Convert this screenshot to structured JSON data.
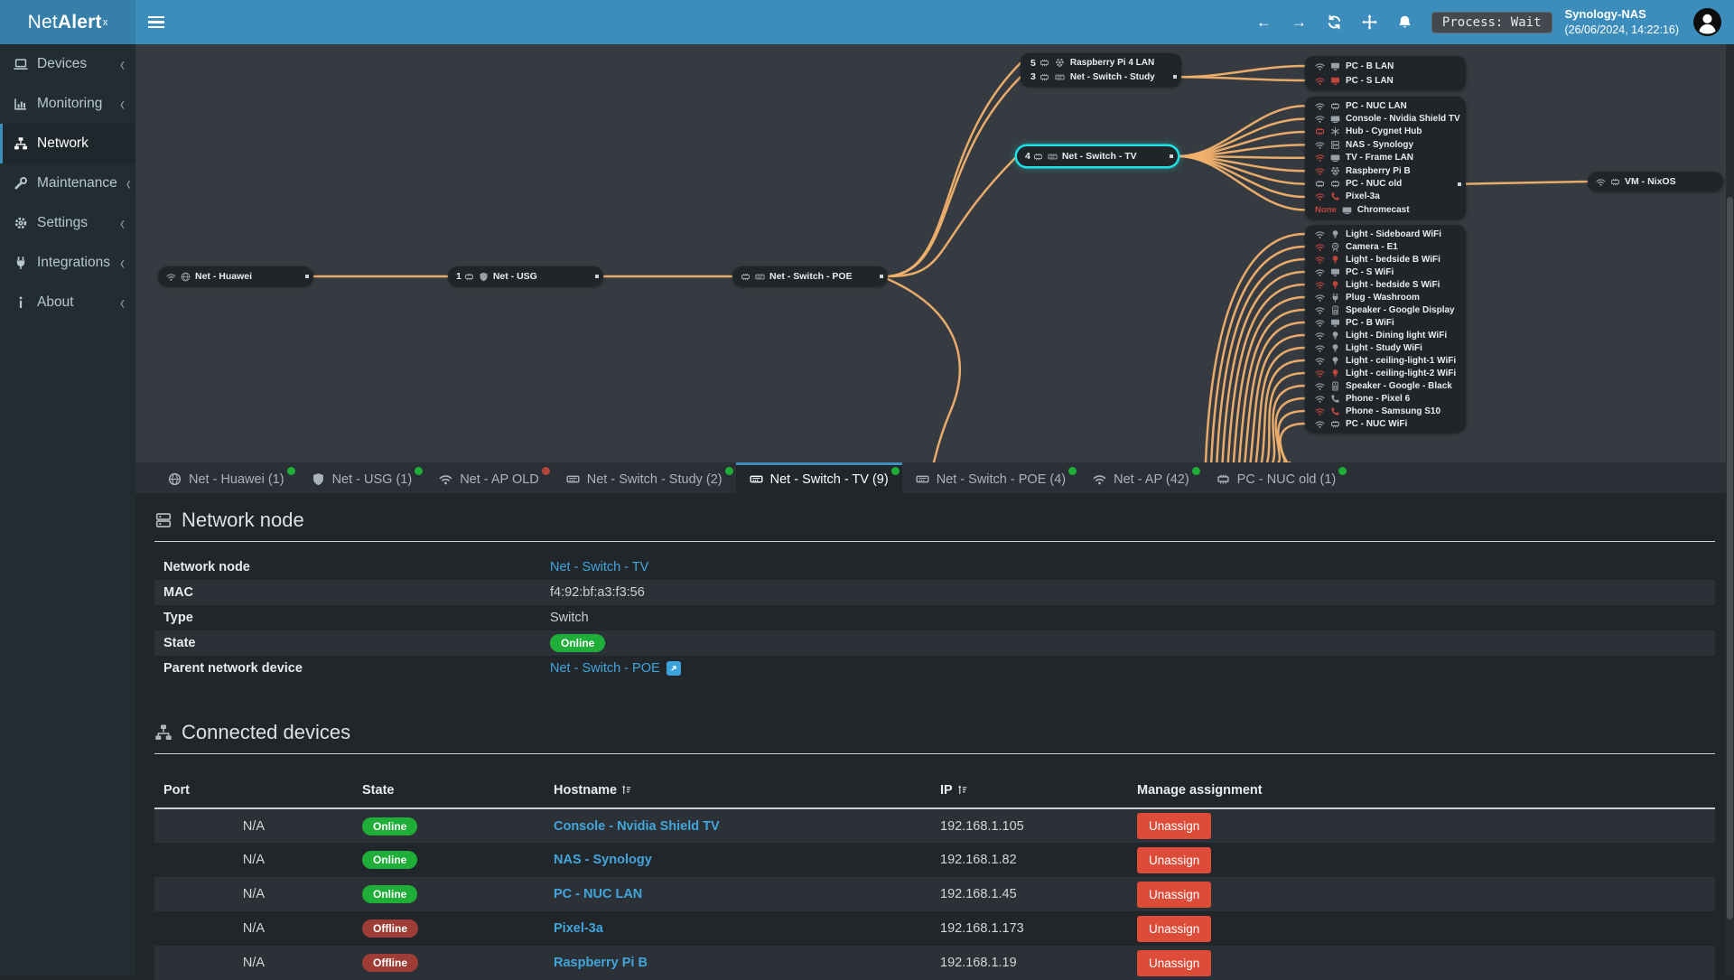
{
  "header": {
    "logo_net": "Net",
    "logo_alert": "Alert",
    "logo_sup": "x",
    "process_badge": "Process: Wait",
    "host_name": "Synology-NAS",
    "host_time": "(26/06/2024, 14:22:16)",
    "nav": {
      "back": "←",
      "forward": "→"
    }
  },
  "colors": {
    "accent": "#3c8dbc",
    "topology_link": "#f2b16d",
    "selected_outline": "#1ee3e6",
    "online": "#1fae38",
    "offline": "#9e3d35",
    "danger": "#dd4b39",
    "link_blue": "#42a5dc"
  },
  "sidebar": {
    "items": [
      {
        "icon": "laptop",
        "label": "Devices",
        "chevron": true
      },
      {
        "icon": "chart",
        "label": "Monitoring",
        "chevron": true
      },
      {
        "icon": "sitemap",
        "label": "Network",
        "active": true
      },
      {
        "icon": "wrench",
        "label": "Maintenance",
        "chevron": true
      },
      {
        "icon": "gear",
        "label": "Settings",
        "chevron": true
      },
      {
        "icon": "plug",
        "label": "Integrations",
        "chevron": true
      },
      {
        "icon": "info",
        "label": "About",
        "chevron": true
      }
    ]
  },
  "topology": {
    "nodes": [
      {
        "id": "huawei",
        "icons": [
          "wifi",
          "globe"
        ],
        "label": "Net - Huawei",
        "port": true
      },
      {
        "id": "usg",
        "count": 1,
        "icons": [
          "shield"
        ],
        "label": "Net - USG",
        "port": true
      },
      {
        "id": "poe",
        "icons": [
          "eth",
          "switch"
        ],
        "label": "Net - Switch - POE",
        "port": true
      },
      {
        "id": "tv",
        "count": 4,
        "icons": [
          "switch"
        ],
        "label": "Net - Switch - TV",
        "port": true,
        "selected": true
      },
      {
        "id": "vm",
        "icons": [
          "wifi",
          "eth"
        ],
        "label": "VM - NixOS"
      }
    ],
    "groups": {
      "study": [
        {
          "count": 5,
          "dev": "raspberry",
          "label": "Raspberry Pi 4 LAN"
        },
        {
          "count": 3,
          "dev": "switch",
          "label": "Net - Switch - Study",
          "port": true
        }
      ],
      "g1": [
        {
          "conn": "wifi",
          "dev": "monitor",
          "label": "PC - B LAN"
        },
        {
          "conn": "wifi",
          "connRed": true,
          "dev": "monitor",
          "devRed": true,
          "label": "PC - S LAN"
        }
      ],
      "g2": [
        {
          "conn": "wifi",
          "dev": "eth",
          "label": "PC - NUC LAN"
        },
        {
          "conn": "wifi",
          "dev": "tv",
          "label": "Console - Nvidia Shield TV"
        },
        {
          "conn": "eth",
          "connRed": true,
          "dev": "hub",
          "label": "Hub - Cygnet Hub"
        },
        {
          "conn": "wifi",
          "dev": "server",
          "label": "NAS - Synology"
        },
        {
          "conn": "wifi",
          "connRed": true,
          "dev": "tv",
          "label": "TV - Frame LAN"
        },
        {
          "conn": "wifi",
          "connRed": true,
          "dev": "raspberry",
          "label": "Raspberry Pi B"
        },
        {
          "conn": "eth",
          "dev": "eth",
          "label": "PC - NUC old",
          "port": true
        },
        {
          "conn": "wifi",
          "connRed": true,
          "dev": "phone",
          "devRed": true,
          "label": "Pixel-3a"
        },
        {
          "conn": "none",
          "connText": "None",
          "dev": "tv",
          "label": "Chromecast"
        }
      ],
      "g3": [
        {
          "conn": "wifi",
          "dev": "bulb",
          "label": "Light - Sideboard WiFi"
        },
        {
          "conn": "wifi",
          "connRed": true,
          "dev": "camera",
          "label": "Camera - E1"
        },
        {
          "conn": "wifi",
          "connRed": true,
          "dev": "bulb",
          "devRed": true,
          "label": "Light - bedside B WiFi"
        },
        {
          "conn": "wifi",
          "dev": "monitor",
          "label": "PC - S WiFi"
        },
        {
          "conn": "wifi",
          "connRed": true,
          "dev": "bulb",
          "devRed": true,
          "label": "Light - bedside S WiFi"
        },
        {
          "conn": "wifi",
          "dev": "plug",
          "label": "Plug - Washroom"
        },
        {
          "conn": "wifi",
          "dev": "speaker",
          "label": "Speaker - Google Display"
        },
        {
          "conn": "wifi",
          "dev": "monitor",
          "label": "PC - B WiFi"
        },
        {
          "conn": "wifi",
          "dev": "bulb",
          "label": "Light - Dining light WiFi"
        },
        {
          "conn": "wifi",
          "dev": "bulb",
          "label": "Light - Study WiFi"
        },
        {
          "conn": "wifi",
          "dev": "bulb",
          "label": "Light - ceiling-light-1 WiFi"
        },
        {
          "conn": "wifi",
          "connRed": true,
          "dev": "bulb",
          "devRed": true,
          "label": "Light - ceiling-light-2 WiFi"
        },
        {
          "conn": "wifi",
          "dev": "speaker",
          "label": "Speaker - Google - Black"
        },
        {
          "conn": "wifi",
          "dev": "phone",
          "label": "Phone - Pixel 6"
        },
        {
          "conn": "wifi",
          "connRed": true,
          "dev": "phone",
          "devRed": true,
          "label": "Phone - Samsung S10"
        },
        {
          "conn": "wifi",
          "dev": "eth",
          "label": "PC - NUC WiFi"
        }
      ]
    },
    "links": [
      {
        "from": "huawei",
        "to": "usg"
      },
      {
        "from": "usg",
        "to": "poe"
      },
      {
        "from": "poe",
        "to": "study.0"
      },
      {
        "from": "poe",
        "to": "study.1"
      },
      {
        "from": "poe",
        "to": "tv"
      },
      {
        "from": "poe",
        "to": "below"
      },
      {
        "from": "tv",
        "to": "g2.*"
      },
      {
        "from": "study.1",
        "to": "g1.*"
      },
      {
        "from": "below",
        "to": "g3.*"
      },
      {
        "from": "g2.6",
        "to": "vm"
      }
    ]
  },
  "tabs": [
    {
      "icon": "globe",
      "label": "Net - Huawei (1)",
      "dot": "green"
    },
    {
      "icon": "shield",
      "label": "Net - USG (1)",
      "dot": "green"
    },
    {
      "icon": "wifi",
      "label": "Net - AP OLD",
      "dot": "red"
    },
    {
      "icon": "switch",
      "label": "Net - Switch - Study (2)",
      "dot": "green"
    },
    {
      "icon": "switch",
      "label": "Net - Switch - TV (9)",
      "dot": "green",
      "active": true
    },
    {
      "icon": "switch",
      "label": "Net - Switch - POE (4)",
      "dot": "green"
    },
    {
      "icon": "wifi",
      "label": "Net - AP (42)",
      "dot": "green"
    },
    {
      "icon": "eth",
      "label": "PC - NUC old (1)",
      "dot": "green"
    }
  ],
  "network_node": {
    "title": "Network node",
    "fields": [
      {
        "label": "Network node",
        "value": "Net - Switch - TV",
        "link": true
      },
      {
        "label": "MAC",
        "value": "f4:92:bf:a3:f3:56",
        "text": true
      },
      {
        "label": "Type",
        "value": "Switch",
        "text": true
      },
      {
        "label": "State",
        "value": "Online",
        "badge": true
      },
      {
        "label": "Parent network device",
        "value": "Net - Switch - POE",
        "link": true,
        "ext": true
      }
    ]
  },
  "connected_devices": {
    "title": "Connected devices",
    "columns": {
      "port": "Port",
      "state": "State",
      "hostname": "Hostname",
      "ip": "IP",
      "manage": "Manage assignment"
    },
    "rows": [
      {
        "port": "N/A",
        "state": "Online",
        "hostname": "Console - Nvidia Shield TV",
        "ip": "192.168.1.105",
        "action": "Unassign"
      },
      {
        "port": "N/A",
        "state": "Online",
        "hostname": "NAS - Synology",
        "ip": "192.168.1.82",
        "action": "Unassign"
      },
      {
        "port": "N/A",
        "state": "Online",
        "hostname": "PC - NUC LAN",
        "ip": "192.168.1.45",
        "action": "Unassign"
      },
      {
        "port": "N/A",
        "state": "Offline",
        "hostname": "Pixel-3a",
        "ip": "192.168.1.173",
        "action": "Unassign"
      },
      {
        "port": "N/A",
        "state": "Offline",
        "hostname": "Raspberry Pi B",
        "ip": "192.168.1.19",
        "action": "Unassign"
      }
    ]
  }
}
